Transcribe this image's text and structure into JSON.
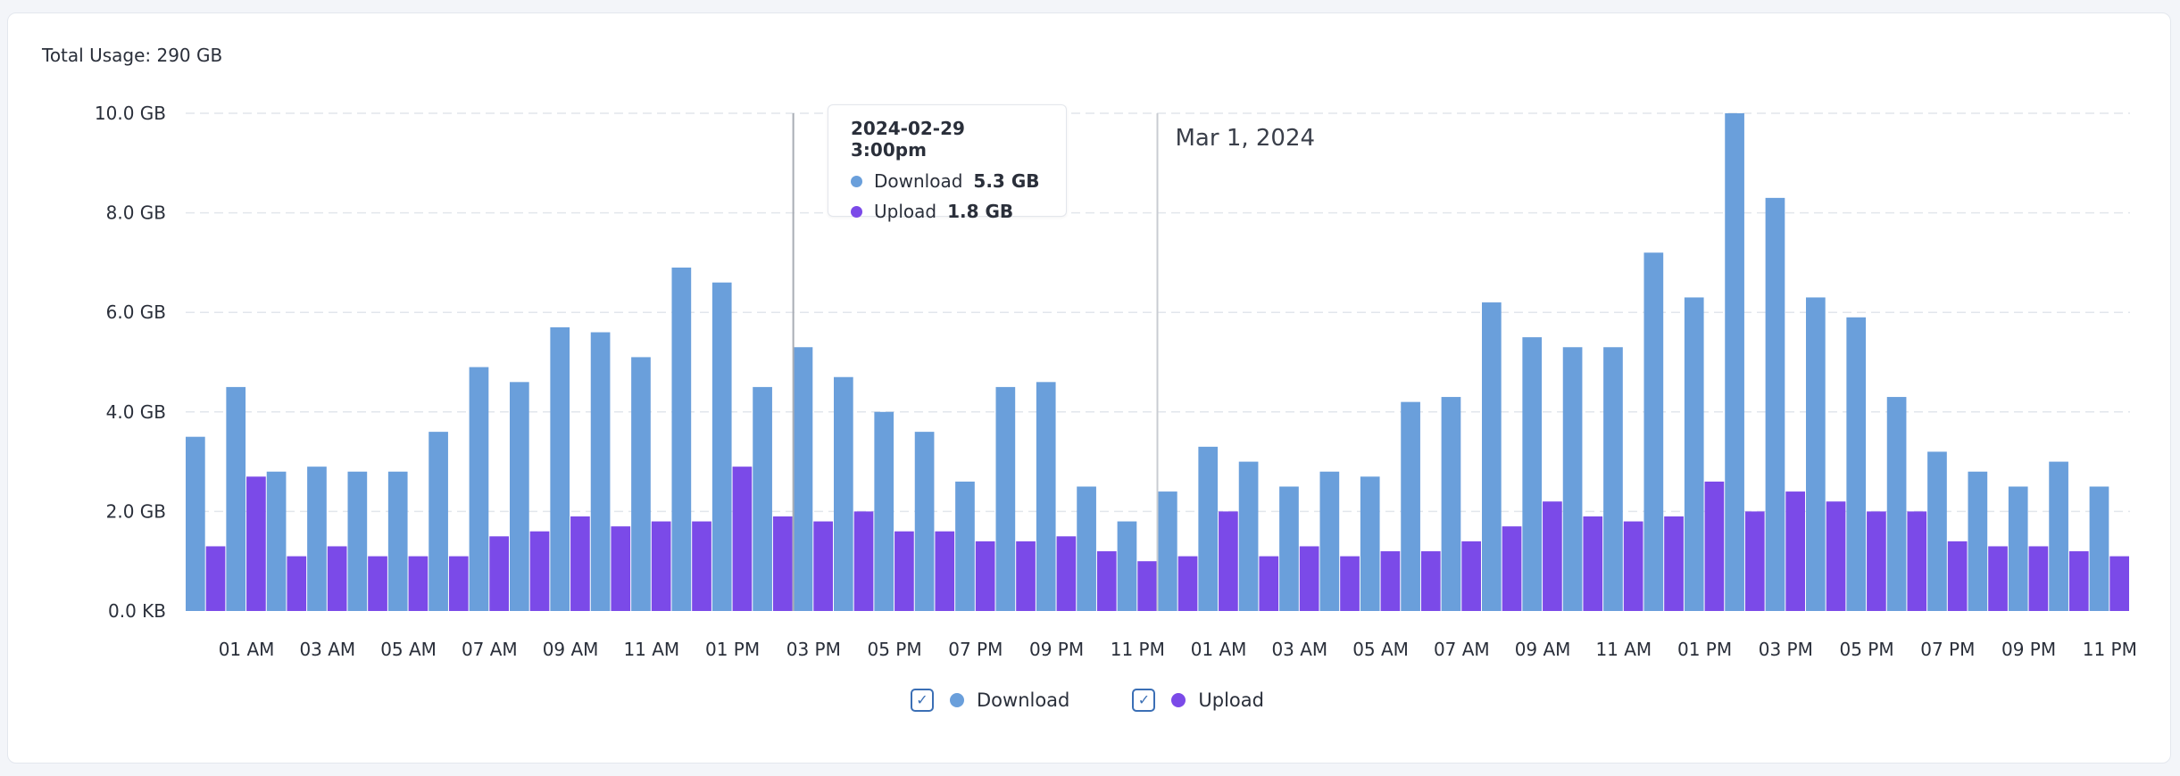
{
  "summary": {
    "total_label": "Total Usage: 290 GB"
  },
  "colors": {
    "download": "#6a9fdb",
    "upload": "#7b4ae8",
    "grid": "#e2e6ec",
    "axis_text": "#2a2f3a",
    "marker_line": "#c9ccd2"
  },
  "chart_data": {
    "type": "bar",
    "y_unit": "GB",
    "ylim": [
      0,
      10
    ],
    "y_ticks": [
      "0.0 KB",
      "2.0 GB",
      "4.0 GB",
      "6.0 GB",
      "8.0 GB",
      "10.0 GB"
    ],
    "x_tick_labels": [
      "01 AM",
      "03 AM",
      "05 AM",
      "07 AM",
      "09 AM",
      "11 AM",
      "01 PM",
      "03 PM",
      "05 PM",
      "07 PM",
      "09 PM",
      "11 PM",
      "01 AM",
      "03 AM",
      "05 AM",
      "07 AM",
      "09 AM",
      "11 AM",
      "01 PM",
      "03 PM",
      "05 PM",
      "07 PM",
      "09 PM",
      "11 PM"
    ],
    "categories": [
      "2024-02-29 12am",
      "1am",
      "2am",
      "3am",
      "4am",
      "5am",
      "6am",
      "7am",
      "8am",
      "9am",
      "10am",
      "11am",
      "12pm",
      "1pm",
      "2pm",
      "3pm",
      "4pm",
      "5pm",
      "6pm",
      "7pm",
      "8pm",
      "9pm",
      "10pm",
      "11pm",
      "2024-03-01 12am",
      "1am",
      "2am",
      "3am",
      "4am",
      "5am",
      "6am",
      "7am",
      "8am",
      "9am",
      "10am",
      "11am",
      "12pm",
      "1pm",
      "2pm",
      "3pm",
      "4pm",
      "5pm",
      "6pm",
      "7pm",
      "8pm",
      "9pm",
      "10pm",
      "11pm"
    ],
    "series": [
      {
        "name": "Download",
        "values": [
          3.5,
          4.5,
          2.8,
          2.9,
          2.8,
          2.8,
          3.6,
          4.9,
          4.6,
          5.7,
          5.6,
          5.1,
          6.9,
          6.6,
          4.5,
          5.3,
          4.7,
          4.0,
          3.6,
          2.6,
          4.5,
          4.6,
          2.5,
          1.8,
          2.4,
          3.3,
          3.0,
          2.5,
          2.8,
          2.7,
          4.2,
          4.3,
          6.2,
          5.5,
          5.3,
          5.3,
          7.2,
          6.3,
          10.0,
          8.3,
          6.3,
          5.9,
          4.3,
          3.2,
          2.8,
          2.5,
          3.0,
          2.5
        ]
      },
      {
        "name": "Upload",
        "values": [
          1.3,
          2.7,
          1.1,
          1.3,
          1.1,
          1.1,
          1.1,
          1.5,
          1.6,
          1.9,
          1.7,
          1.8,
          1.8,
          2.9,
          1.9,
          1.8,
          2.0,
          1.6,
          1.6,
          1.4,
          1.4,
          1.5,
          1.2,
          1.0,
          1.1,
          2.0,
          1.1,
          1.3,
          1.1,
          1.2,
          1.2,
          1.4,
          1.7,
          2.2,
          1.9,
          1.8,
          1.9,
          2.6,
          2.0,
          2.4,
          2.2,
          2.0,
          2.0,
          1.4,
          1.3,
          1.3,
          1.2,
          1.1
        ]
      }
    ],
    "day_marker": {
      "label": "Mar 1, 2024",
      "at_index": 24
    },
    "hover_index": 15,
    "grid": true,
    "legend_position": "bottom-center"
  },
  "tooltip": {
    "title": "2024-02-29 3:00pm",
    "download_label": "Download",
    "download_value": "5.3 GB",
    "upload_label": "Upload",
    "upload_value": "1.8 GB"
  },
  "legend": {
    "download_label": "Download",
    "upload_label": "Upload",
    "check_glyph": "✓"
  }
}
